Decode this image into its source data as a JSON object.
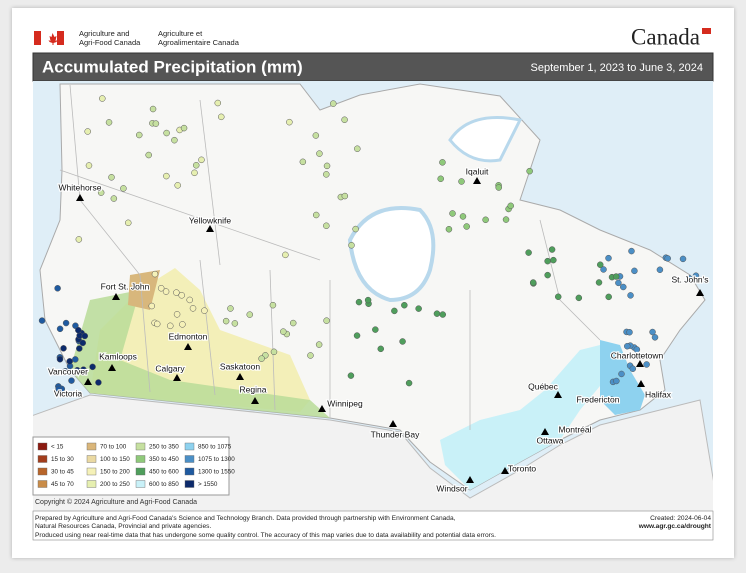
{
  "header": {
    "en": [
      "Agriculture and",
      "Agri-Food Canada"
    ],
    "fr": [
      "Agriculture et",
      "Agroalimentaire Canada"
    ],
    "wordmark": "Canada"
  },
  "title": "Accumulated Precipitation (mm)",
  "period": "September 1, 2023 to June 3, 2024",
  "cities": [
    "Whitehorse",
    "Yellowknife",
    "Iqaluit",
    "Fort St. John",
    "Edmonton",
    "Kamloops",
    "Calgary",
    "Saskatoon",
    "Regina",
    "Vancouver",
    "Victoria",
    "Winnipeg",
    "Thunder Bay",
    "Québec",
    "Charlottetown",
    "St. John's",
    "Fredericton",
    "Halifax",
    "Montréal",
    "Ottawa",
    "Toronto",
    "Windsor"
  ],
  "legend": [
    {
      "label": "< 15",
      "color": "#8b1a10"
    },
    {
      "label": "15 to 30",
      "color": "#a23d1c"
    },
    {
      "label": "30 to 45",
      "color": "#b8652a"
    },
    {
      "label": "45 to 70",
      "color": "#c98c48"
    },
    {
      "label": "70 to 100",
      "color": "#dab67a"
    },
    {
      "label": "100 to 150",
      "color": "#ead9a2"
    },
    {
      "label": "150 to 200",
      "color": "#f5f1b8"
    },
    {
      "label": "200 to 250",
      "color": "#e6efb0"
    },
    {
      "label": "250 to 350",
      "color": "#c6e0a0"
    },
    {
      "label": "350 to 450",
      "color": "#8fc97a"
    },
    {
      "label": "450 to 600",
      "color": "#4f9e5c"
    },
    {
      "label": "600 to 850",
      "color": "#c9f1f8"
    },
    {
      "label": "850 to 1075",
      "color": "#8ed2ef"
    },
    {
      "label": "1075 to 1300",
      "color": "#4b8fc6"
    },
    {
      "label": "1300 to 1550",
      "color": "#1f5aa0"
    },
    {
      "label": "> 1550",
      "color": "#0c2a6b"
    }
  ],
  "copyright": "Copyright © 2024 Agriculture and Agri-Food Canada",
  "footer": [
    "Prepared by Agriculture and Agri-Food Canada's Science and Technology Branch. Data provided through partnership with Environment Canada,",
    "Natural Resources Canada, Provincial and private agencies.",
    "Produced using near real-time data that has undergone some quality control. The accuracy of this map varies due to data availability and potential data errors."
  ],
  "created": "Created: 2024-06-04",
  "url": "www.agr.gc.ca/drought"
}
